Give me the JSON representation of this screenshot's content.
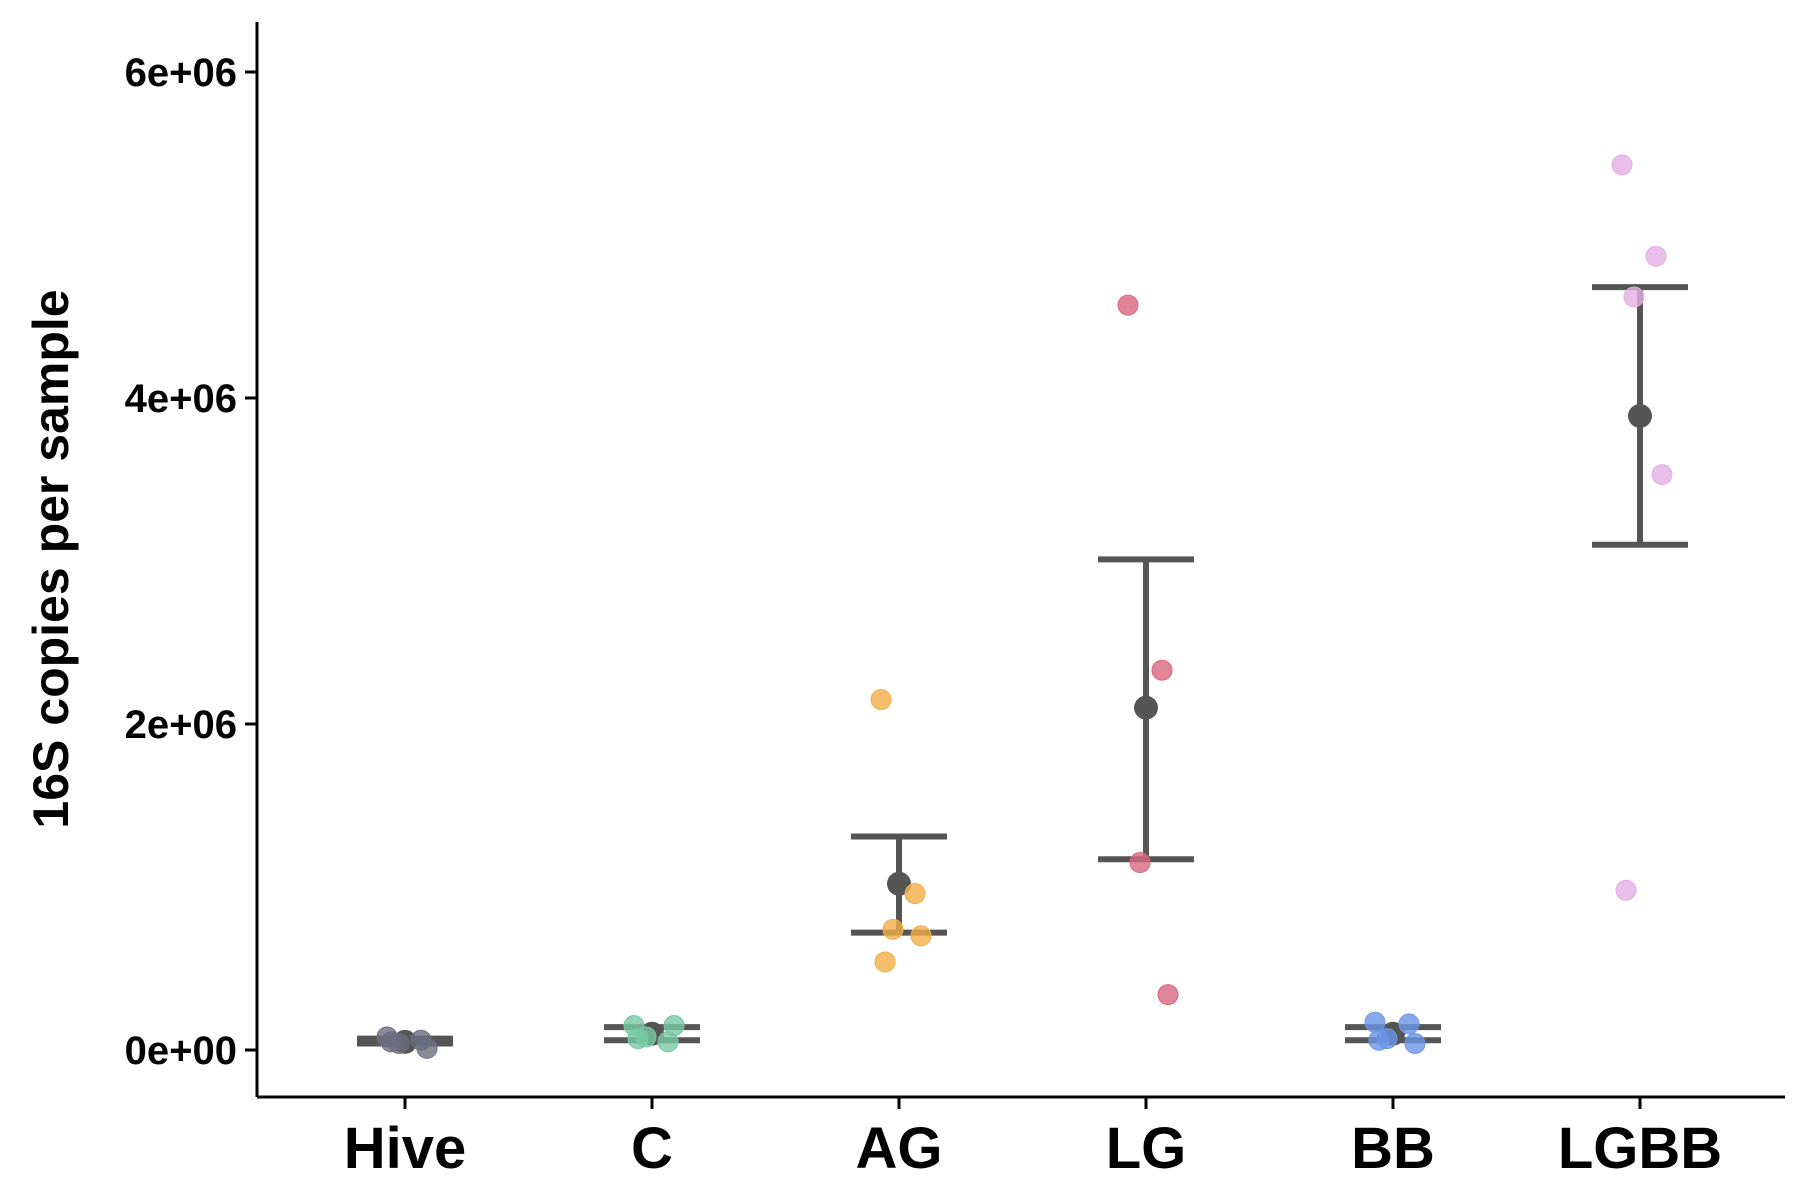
{
  "chart_data": {
    "type": "scatter",
    "title": "",
    "xlabel": "",
    "ylabel": "16S copies per sample",
    "ylim": [
      -300000,
      6300000
    ],
    "yticks": [
      0,
      2000000,
      4000000,
      6000000
    ],
    "ytick_labels": [
      "0e+00",
      "2e+06",
      "4e+06",
      "6e+06"
    ],
    "grid": false,
    "legend": "none",
    "categories": [
      "Hive",
      "C",
      "AG",
      "LG",
      "BB",
      "LGBB"
    ],
    "summary_color": "#555555",
    "groups": [
      {
        "category": "Hive",
        "color": "#6b6e80",
        "mean": 50000,
        "error_low": 40000,
        "error_high": 70000,
        "points": [
          80000,
          60000,
          40000,
          10000,
          50000
        ]
      },
      {
        "category": "C",
        "color": "#77c9a3",
        "mean": 100000,
        "error_low": 60000,
        "error_high": 140000,
        "points": [
          150000,
          50000,
          80000,
          150000,
          70000
        ]
      },
      {
        "category": "AG",
        "color": "#f2ae48",
        "mean": 1020000,
        "error_low": 720000,
        "error_high": 1310000,
        "points": [
          2150000,
          960000,
          740000,
          700000,
          540000
        ]
      },
      {
        "category": "LG",
        "color": "#d9667e",
        "mean": 2100000,
        "error_low": 1170000,
        "error_high": 3010000,
        "points": [
          4570000,
          2330000,
          1150000,
          340000
        ]
      },
      {
        "category": "BB",
        "color": "#6a95e6",
        "mean": 100000,
        "error_low": 60000,
        "error_high": 140000,
        "points": [
          170000,
          160000,
          70000,
          40000,
          60000
        ]
      },
      {
        "category": "LGBB",
        "color": "#e3aee3",
        "mean": 3890000,
        "error_low": 3100000,
        "error_high": 4680000,
        "points": [
          5430000,
          4870000,
          4620000,
          3530000,
          980000
        ]
      }
    ]
  }
}
